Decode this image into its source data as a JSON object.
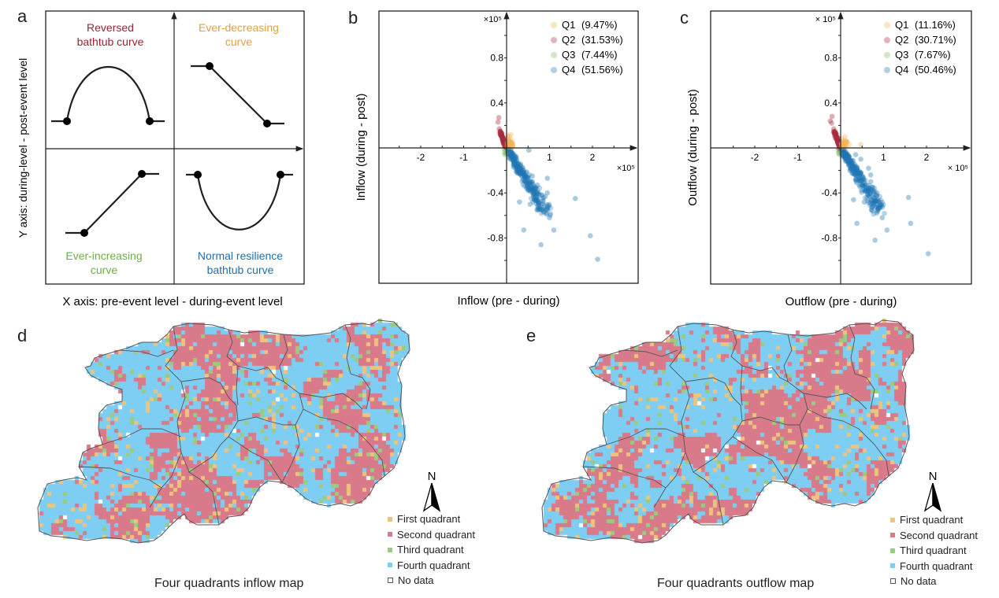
{
  "colors": {
    "q1": "#EDC47E",
    "q2": "#D97A8A",
    "q3": "#9ACB7E",
    "q4": "#7ECEF4",
    "q1_point": "#F2B45A",
    "q2_point": "#A82A3F",
    "q3_point": "#7EBA5E",
    "q4_point": "#1F77B4",
    "concept_q2_label": "#9B2335",
    "concept_q1_label": "#E0A23C",
    "concept_q3_label": "#6FAE45",
    "concept_q4_label": "#1F6FAE",
    "boundary": "#555555"
  },
  "panels": {
    "a": {
      "letter": "a",
      "x_axis_label": "X axis: pre-event level  -  during-event level",
      "y_axis_label": "Y axis: during-level  -  post-event level",
      "quadrants": [
        {
          "id": "q2",
          "title_line1": "Reversed",
          "title_line2": "bathtub curve",
          "shape": "inverted-parabola"
        },
        {
          "id": "q1",
          "title_line1": "Ever-decreasing",
          "title_line2": "curve",
          "shape": "decreasing-line"
        },
        {
          "id": "q3",
          "title_line1": "Ever-increasing",
          "title_line2": "curve",
          "shape": "increasing-line"
        },
        {
          "id": "q4",
          "title_line1": "Normal resilience",
          "title_line2": "bathtub curve",
          "shape": "parabola"
        }
      ]
    },
    "b": {
      "letter": "b",
      "xlabel": "Inflow (pre - during)",
      "ylabel": "Inflow (during - post)",
      "x_multiplier": "×10⁵",
      "y_multiplier": "×10⁵",
      "legend": [
        {
          "key": "Q1",
          "pct": "(9.47%)"
        },
        {
          "key": "Q2",
          "pct": "(31.53%)"
        },
        {
          "key": "Q3",
          "pct": "(7.44%)"
        },
        {
          "key": "Q4",
          "pct": "(51.56%)"
        }
      ]
    },
    "c": {
      "letter": "c",
      "xlabel": "Outflow (pre - during)",
      "ylabel": "Outflow (during - post)",
      "x_multiplier": "× 10⁵",
      "y_multiplier": "× 10⁵",
      "legend": [
        {
          "key": "Q1",
          "pct": "(11.16%)"
        },
        {
          "key": "Q2",
          "pct": "(30.71%)"
        },
        {
          "key": "Q3",
          "pct": "(7.67%)"
        },
        {
          "key": "Q4",
          "pct": "(50.46%)"
        }
      ]
    },
    "d": {
      "letter": "d",
      "title": "Four quadrants inflow map",
      "north_label": "N",
      "seed": 11
    },
    "e": {
      "letter": "e",
      "title": "Four quadrants outflow map",
      "north_label": "N",
      "seed": 29
    },
    "map_legend": [
      {
        "key": "q1",
        "label": "First quadrant"
      },
      {
        "key": "q2",
        "label": "Second quadrant"
      },
      {
        "key": "q3",
        "label": "Third quadrant"
      },
      {
        "key": "q4",
        "label": "Fourth quadrant"
      },
      {
        "key": "none",
        "label": "No data"
      }
    ]
  },
  "chart_data": [
    {
      "type": "scatter",
      "panel": "b",
      "title": "",
      "xlabel": "Inflow (pre - during)",
      "ylabel": "Inflow (during - post)",
      "x_scale": "1e5",
      "y_scale": "1e5",
      "xlim": [
        -3.0,
        2.9
      ],
      "ylim": [
        -1.2,
        1.0
      ],
      "x_ticks": [
        -2,
        -1,
        1,
        2
      ],
      "y_ticks": [
        0.8,
        0.4,
        -0.4,
        -0.8
      ],
      "grid": false,
      "legend_position": "top-right",
      "series": [
        {
          "name": "Q1 (9.47%)",
          "quadrant": "Q1",
          "points": [
            [
              0.02,
              0.02
            ],
            [
              0.05,
              0.04
            ],
            [
              0.03,
              0.08
            ],
            [
              0.08,
              0.02
            ],
            [
              0.06,
              0.1
            ],
            [
              0.1,
              0.12
            ],
            [
              0.04,
              0.05
            ],
            [
              0.12,
              0.04
            ],
            [
              0.07,
              0.06
            ],
            [
              0.02,
              0.11
            ],
            [
              0.09,
              0.08
            ]
          ]
        },
        {
          "name": "Q2 (31.53%)",
          "quadrant": "Q2",
          "points": [
            [
              -0.18,
              0.27
            ],
            [
              -0.2,
              0.23
            ],
            [
              -0.17,
              0.17
            ],
            [
              -0.15,
              0.15
            ],
            [
              -0.13,
              0.12
            ],
            [
              -0.12,
              0.1
            ],
            [
              -0.1,
              0.08
            ],
            [
              -0.09,
              0.06
            ],
            [
              -0.07,
              0.05
            ],
            [
              -0.05,
              0.03
            ],
            [
              -0.04,
              0.02
            ],
            [
              -0.11,
              0.13
            ],
            [
              -0.08,
              0.09
            ],
            [
              -0.06,
              0.07
            ],
            [
              -0.03,
              0.04
            ],
            [
              -0.14,
              0.11
            ],
            [
              -0.02,
              0.01
            ]
          ]
        },
        {
          "name": "Q3 (7.44%)",
          "quadrant": "Q3",
          "points": [
            [
              -0.03,
              -0.02
            ],
            [
              -0.05,
              -0.04
            ],
            [
              -0.02,
              -0.05
            ],
            [
              -0.06,
              -0.01
            ],
            [
              -0.04,
              -0.06
            ]
          ]
        },
        {
          "name": "Q4 (51.56%)",
          "quadrant": "Q4",
          "points": [
            [
              0.52,
              -0.02
            ],
            [
              0.25,
              -0.2
            ],
            [
              0.5,
              -0.27
            ],
            [
              0.6,
              -0.25
            ],
            [
              0.95,
              -0.27
            ],
            [
              0.55,
              -0.5
            ],
            [
              0.92,
              -0.58
            ],
            [
              1.0,
              -0.62
            ],
            [
              1.6,
              -0.45
            ],
            [
              0.4,
              -0.73
            ],
            [
              1.1,
              -0.73
            ],
            [
              0.8,
              -0.86
            ],
            [
              1.95,
              -0.78
            ],
            [
              2.12,
              -0.99
            ],
            [
              0.3,
              -0.48
            ],
            [
              0.65,
              -0.45
            ],
            [
              0.85,
              -0.55
            ],
            [
              0.95,
              -0.4
            ],
            [
              0.72,
              -0.33
            ]
          ]
        }
      ],
      "dense_cluster": {
        "quadrant": "Q4",
        "from": [
          0.0,
          0.0
        ],
        "to": [
          0.9,
          -0.55
        ],
        "note": "dense band of points"
      }
    },
    {
      "type": "scatter",
      "panel": "c",
      "title": "",
      "xlabel": "Outflow (pre - during)",
      "ylabel": "Outflow (during - post)",
      "x_scale": "1e5",
      "y_scale": "1e5",
      "xlim": [
        -3.0,
        2.9
      ],
      "ylim": [
        -1.2,
        1.0
      ],
      "x_ticks": [
        -2,
        -1,
        1,
        2
      ],
      "y_ticks": [
        0.8,
        0.4,
        -0.4,
        -0.8
      ],
      "grid": false,
      "legend_position": "top-right",
      "series": [
        {
          "name": "Q1 (11.16%)",
          "quadrant": "Q1",
          "points": [
            [
              0.02,
              0.02
            ],
            [
              0.05,
              0.04
            ],
            [
              0.1,
              0.1
            ],
            [
              0.08,
              0.03
            ],
            [
              0.47,
              0.03
            ],
            [
              0.15,
              0.05
            ],
            [
              0.04,
              0.08
            ],
            [
              0.12,
              0.02
            ],
            [
              0.06,
              0.06
            ],
            [
              0.2,
              0.03
            ]
          ]
        },
        {
          "name": "Q2 (30.71%)",
          "quadrant": "Q2",
          "points": [
            [
              -0.2,
              0.28
            ],
            [
              -0.24,
              0.24
            ],
            [
              -0.21,
              0.22
            ],
            [
              -0.16,
              0.17
            ],
            [
              -0.14,
              0.14
            ],
            [
              -0.12,
              0.12
            ],
            [
              -0.1,
              0.1
            ],
            [
              -0.08,
              0.07
            ],
            [
              -0.06,
              0.05
            ],
            [
              -0.04,
              0.03
            ],
            [
              -0.03,
              0.02
            ],
            [
              -0.11,
              0.11
            ],
            [
              -0.07,
              0.09
            ],
            [
              -0.13,
              0.09
            ]
          ]
        },
        {
          "name": "Q3 (7.67%)",
          "quadrant": "Q3",
          "points": [
            [
              -0.03,
              -0.02
            ],
            [
              -0.05,
              -0.05
            ],
            [
              -0.02,
              -0.06
            ],
            [
              -0.06,
              -0.02
            ],
            [
              -0.04,
              -0.04
            ]
          ]
        },
        {
          "name": "Q4 (50.46%)",
          "quadrant": "Q4",
          "points": [
            [
              0.35,
              -0.06
            ],
            [
              0.47,
              -0.1
            ],
            [
              0.65,
              -0.18
            ],
            [
              0.7,
              -0.24
            ],
            [
              0.75,
              -0.35
            ],
            [
              0.85,
              -0.4
            ],
            [
              0.9,
              -0.52
            ],
            [
              0.97,
              -0.62
            ],
            [
              1.58,
              -0.44
            ],
            [
              0.38,
              -0.67
            ],
            [
              1.63,
              -0.67
            ],
            [
              1.08,
              -0.73
            ],
            [
              0.8,
              -0.82
            ],
            [
              2.04,
              -0.94
            ],
            [
              0.3,
              -0.46
            ],
            [
              0.55,
              -0.48
            ],
            [
              0.7,
              -0.3
            ]
          ]
        }
      ],
      "dense_cluster": {
        "quadrant": "Q4",
        "from": [
          0.0,
          0.0
        ],
        "to": [
          0.9,
          -0.55
        ],
        "note": "dense band of points"
      }
    },
    {
      "type": "heatmap",
      "panel": "d",
      "title": "Four quadrants inflow map",
      "categories": [
        "First quadrant",
        "Second quadrant",
        "Third quadrant",
        "Fourth quadrant",
        "No data"
      ],
      "legend_position": "bottom-right"
    },
    {
      "type": "heatmap",
      "panel": "e",
      "title": "Four quadrants outflow map",
      "categories": [
        "First quadrant",
        "Second quadrant",
        "Third quadrant",
        "Fourth quadrant",
        "No data"
      ],
      "legend_position": "bottom-right"
    }
  ]
}
